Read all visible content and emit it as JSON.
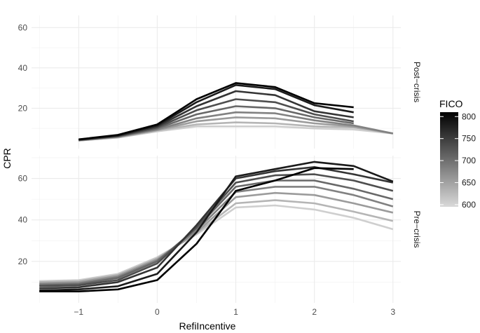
{
  "chart_data": {
    "type": "line",
    "xlabel": "RefiIncentive",
    "ylabel": "CPR",
    "x_ticks": [
      -1,
      0,
      1,
      2,
      3
    ],
    "xlim": [
      -1.6,
      3.1
    ],
    "grid": true,
    "legend": {
      "title": "FICO",
      "placement": "right",
      "ticks": [
        600,
        650,
        700,
        750,
        800
      ],
      "range": [
        595,
        810
      ],
      "color_low": "#cfcfcf",
      "color_high": "#000000"
    },
    "panels": [
      {
        "strip": "Post−crisis",
        "y_ticks": [
          20,
          40,
          60
        ],
        "ylim": [
          0,
          66
        ],
        "series": [
          {
            "fico": 600,
            "x": [
              -1,
              -0.5,
              0,
              0.5,
              1,
              1.5,
              2,
              2.5,
              3
            ],
            "y": [
              4,
              5.5,
              8.5,
              11,
              11,
              11,
              10,
              9.5,
              7.5
            ]
          },
          {
            "fico": 625,
            "x": [
              -1,
              -0.5,
              0,
              0.5,
              1,
              1.5,
              2,
              2.5,
              3
            ],
            "y": [
              4,
              5.5,
              9,
              12,
              13,
              12.5,
              11,
              10.5,
              7.5
            ]
          },
          {
            "fico": 650,
            "x": [
              -1,
              -0.5,
              0,
              0.5,
              1,
              1.5,
              2,
              2.5,
              3
            ],
            "y": [
              4,
              5.8,
              9.2,
              13.5,
              15.5,
              15,
              12.5,
              11,
              7.5
            ]
          },
          {
            "fico": 675,
            "x": [
              -1,
              -0.5,
              0,
              0.5,
              1,
              1.5,
              2,
              2.5,
              3
            ],
            "y": [
              4.2,
              6,
              9.5,
              15,
              18,
              17.5,
              14,
              11.5,
              7.5
            ]
          },
          {
            "fico": 700,
            "x": [
              -1,
              -0.5,
              0,
              0.5,
              1,
              1.5,
              2,
              2.5
            ],
            "y": [
              4.2,
              6,
              10,
              17,
              21,
              20,
              15.5,
              12.5
            ]
          },
          {
            "fico": 725,
            "x": [
              -1,
              -0.5,
              0,
              0.5,
              1,
              1.5,
              2,
              2.5
            ],
            "y": [
              4.3,
              6.2,
              10.5,
              19,
              24.5,
              23,
              17,
              13.5
            ]
          },
          {
            "fico": 750,
            "x": [
              -1,
              -0.5,
              0,
              0.5,
              1,
              1.5,
              2,
              2.5
            ],
            "y": [
              4.4,
              6.4,
              11,
              21,
              28.5,
              26.5,
              18.5,
              15.5
            ]
          },
          {
            "fico": 775,
            "x": [
              -1,
              -0.5,
              0,
              0.5,
              1,
              1.5,
              2,
              2.5
            ],
            "y": [
              4.5,
              6.6,
              11.5,
              23,
              31.5,
              29.5,
              21.5,
              18
            ]
          },
          {
            "fico": 800,
            "x": [
              -1,
              -0.5,
              0,
              0.5,
              1,
              1.5,
              2,
              2.5
            ],
            "y": [
              4.6,
              6.8,
              12,
              24.5,
              32.5,
              30.5,
              22.5,
              20.5
            ]
          }
        ]
      },
      {
        "strip": "Pre−crisis",
        "y_ticks": [
          20,
          40,
          60
        ],
        "ylim": [
          0,
          71
        ],
        "series": [
          {
            "fico": 600,
            "x": [
              -1.5,
              -1,
              -0.5,
              0,
              0.5,
              1,
              1.5,
              2,
              2.5,
              3
            ],
            "y": [
              10.5,
              11,
              14,
              22,
              33,
              46,
              47,
              45,
              41,
              35.5
            ]
          },
          {
            "fico": 625,
            "x": [
              -1.5,
              -1,
              -0.5,
              0,
              0.5,
              1,
              1.5,
              2,
              2.5,
              3
            ],
            "y": [
              10,
              10.5,
              13.5,
              21.5,
              33.5,
              48,
              49.5,
              48,
              44,
              39.5
            ]
          },
          {
            "fico": 650,
            "x": [
              -1.5,
              -1,
              -0.5,
              0,
              0.5,
              1,
              1.5,
              2,
              2.5,
              3
            ],
            "y": [
              9.5,
              10,
              13,
              21,
              34,
              51,
              53,
              52,
              48,
              43.5
            ]
          },
          {
            "fico": 675,
            "x": [
              -1.5,
              -1,
              -0.5,
              0,
              0.5,
              1,
              1.5,
              2,
              2.5,
              3
            ],
            "y": [
              9,
              9.5,
              12.5,
              20.5,
              35,
              53.5,
              56,
              56,
              52,
              46.5
            ]
          },
          {
            "fico": 700,
            "x": [
              -1.5,
              -1,
              -0.5,
              0,
              0.5,
              1,
              1.5,
              2,
              2.5,
              3
            ],
            "y": [
              8.5,
              9,
              12,
              20,
              36,
              56,
              59,
              59,
              55,
              50
            ]
          },
          {
            "fico": 725,
            "x": [
              -1.5,
              -1,
              -0.5,
              0,
              0.5,
              1,
              1.5,
              2,
              2.5,
              3
            ],
            "y": [
              8,
              8.5,
              11,
              19,
              36.5,
              58,
              61.5,
              62,
              59,
              54
            ]
          },
          {
            "fico": 750,
            "x": [
              -1.5,
              -1,
              -0.5,
              0,
              0.5,
              1,
              1.5,
              2,
              2.5,
              3
            ],
            "y": [
              7,
              7.5,
              10,
              17,
              37.5,
              60,
              63.5,
              65.5,
              62,
              58
            ]
          },
          {
            "fico": 775,
            "x": [
              -1.5,
              -1,
              -0.5,
              0,
              0.5,
              1,
              1.5,
              2,
              2.5,
              3
            ],
            "y": [
              6,
              6.5,
              8,
              14,
              34,
              61,
              64.5,
              68,
              66,
              58.5
            ]
          },
          {
            "fico": 800,
            "x": [
              -1.5,
              -1,
              -0.5,
              0,
              0.5,
              1,
              1.5,
              2,
              2.5
            ],
            "y": [
              5.5,
              5.5,
              6.5,
              11,
              28.5,
              54,
              59,
              65,
              64.5
            ]
          }
        ]
      }
    ]
  }
}
